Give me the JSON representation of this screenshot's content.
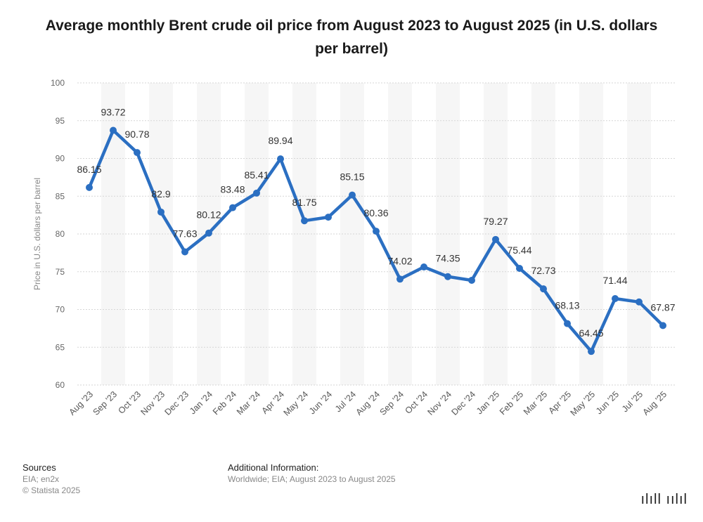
{
  "title": "Average monthly Brent crude oil price from August 2023 to August 2025 (in U.S. dollars per barrel)",
  "chart_data": {
    "type": "line",
    "title": "Average monthly Brent crude oil price from August 2023 to August 2025 (in U.S. dollars per barrel)",
    "xlabel": "",
    "ylabel": "Price in U.S. dollars per barrel",
    "ylim": [
      60,
      100
    ],
    "yticks": [
      60,
      65,
      70,
      75,
      80,
      85,
      90,
      95,
      100
    ],
    "grid": true,
    "categories": [
      "Aug '23",
      "Sep '23",
      "Oct '23",
      "Nov '23",
      "Dec '23",
      "Jan '24",
      "Feb '24",
      "Mar '24",
      "Apr '24",
      "May '24",
      "Jun '24",
      "Jul '24",
      "Aug '24",
      "Sep '24",
      "Oct '24",
      "Nov '24",
      "Dec '24",
      "Jan '25",
      "Feb '25",
      "Mar '25",
      "Apr '25",
      "May '25",
      "Jun '25",
      "Jul '25",
      "Aug '25"
    ],
    "values": [
      86.15,
      93.72,
      90.78,
      82.9,
      77.63,
      80.12,
      83.48,
      85.41,
      89.94,
      81.75,
      82.22,
      85.15,
      80.36,
      74.02,
      75.63,
      74.35,
      73.86,
      79.27,
      75.44,
      72.73,
      68.13,
      64.45,
      71.44,
      71.0,
      67.87
    ],
    "labels": [
      "86.15",
      "93.72",
      "90.78",
      "82.9",
      "77.63",
      "80.12",
      "83.48",
      "85.41",
      "89.94",
      "81.75",
      "",
      "85.15",
      "80.36",
      "74.02",
      "",
      "74.35",
      "",
      "79.27",
      "75.44",
      "72.73",
      "68.13",
      "64.45",
      "71.44",
      "",
      "67.87"
    ],
    "line_color": "#2b6fc2"
  },
  "footer": {
    "sources_heading": "Sources",
    "sources_line1": "EIA; en2x",
    "sources_line2": "© Statista 2025",
    "additional_heading": "Additional Information:",
    "additional_text": "Worldwide; EIA; August 2023 to August 2025"
  },
  "watermark": "ılıll ıılıl"
}
